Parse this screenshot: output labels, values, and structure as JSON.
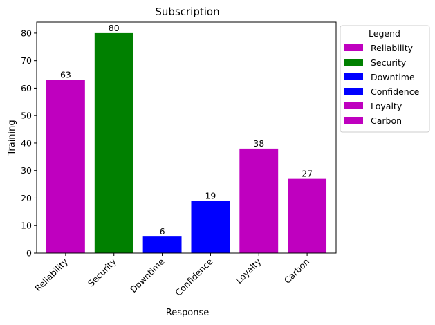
{
  "chart_data": {
    "type": "bar",
    "title": "Subscription",
    "xlabel": "Response",
    "ylabel": "Training",
    "categories": [
      "Reliability",
      "Security",
      "Downtime",
      "Confidence",
      "Loyalty",
      "Carbon"
    ],
    "values": [
      63,
      80,
      6,
      19,
      38,
      27
    ],
    "colors": [
      "#bf00bf",
      "#008000",
      "#0000ff",
      "#0000ff",
      "#bf00bf",
      "#bf00bf"
    ],
    "ylim": [
      0,
      84
    ],
    "yticks": [
      0,
      10,
      20,
      30,
      40,
      50,
      60,
      70,
      80
    ],
    "legend": {
      "title": "Legend",
      "placement": "outside-right-top",
      "entries": [
        {
          "label": "Reliability",
          "color": "#bf00bf"
        },
        {
          "label": "Security",
          "color": "#008000"
        },
        {
          "label": "Downtime",
          "color": "#0000ff"
        },
        {
          "label": "Confidence",
          "color": "#0000ff"
        },
        {
          "label": "Loyalty",
          "color": "#bf00bf"
        },
        {
          "label": "Carbon",
          "color": "#bf00bf"
        }
      ]
    },
    "grid": false
  }
}
